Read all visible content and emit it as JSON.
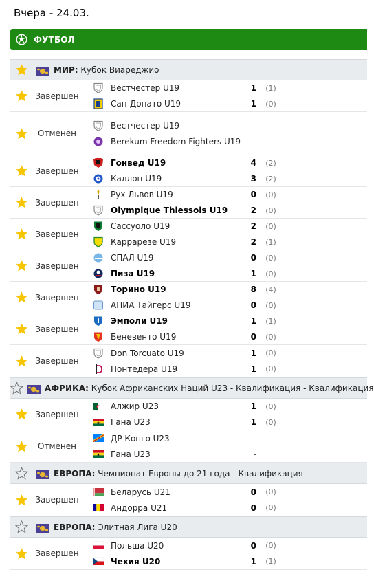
{
  "header": {
    "date": "Вчера - 24.03."
  },
  "sport": {
    "label": "ФУТБОЛ"
  },
  "colors": {
    "accent": "#1f8a13",
    "star": "#f7c600"
  },
  "leagues": [
    {
      "country": "МИР:",
      "name": "Кубок Виареджио",
      "starred": true,
      "matches": [
        {
          "status": "Завершен",
          "h": 46,
          "teams": [
            {
              "name": "Вестчестер U19",
              "score": "1",
              "ht": "(1)",
              "win": false,
              "logo": "shield"
            },
            {
              "name": "Сан-Донато U19",
              "score": "1",
              "ht": "(0)",
              "win": false,
              "logo": "yellowblue"
            }
          ]
        },
        {
          "status": "Отменен",
          "h": 63,
          "teams": [
            {
              "name": "Вестчестер U19",
              "score": "-",
              "ht": "",
              "win": false,
              "logo": "shield"
            },
            {
              "name": "Berekum Freedom Fighters U19",
              "score": "-",
              "ht": "",
              "win": false,
              "logo": "purple"
            }
          ]
        },
        {
          "status": "Завершен",
          "h": 46,
          "teams": [
            {
              "name": "Гонвед U19",
              "score": "4",
              "ht": "(2)",
              "win": true,
              "logo": "redblack"
            },
            {
              "name": "Каллон U19",
              "score": "3",
              "ht": "(2)",
              "win": false,
              "logo": "blue"
            }
          ]
        },
        {
          "status": "Завершен",
          "h": 46,
          "teams": [
            {
              "name": "Рух Львов U19",
              "score": "0",
              "ht": "(0)",
              "win": false,
              "logo": "gold"
            },
            {
              "name": "Olympique Thiessois U19",
              "score": "2",
              "ht": "(0)",
              "win": true,
              "logo": "shield"
            }
          ]
        },
        {
          "status": "Завершен",
          "h": 46,
          "teams": [
            {
              "name": "Сассуоло U19",
              "score": "2",
              "ht": "(0)",
              "win": false,
              "logo": "greenblack"
            },
            {
              "name": "Каррарезе U19",
              "score": "2",
              "ht": "(1)",
              "win": false,
              "logo": "yellowgreen"
            }
          ]
        },
        {
          "status": "Завершен",
          "h": 46,
          "teams": [
            {
              "name": "СПАЛ U19",
              "score": "0",
              "ht": "(0)",
              "win": false,
              "logo": "lightblue"
            },
            {
              "name": "Пиза U19",
              "score": "1",
              "ht": "(0)",
              "win": true,
              "logo": "darkblue"
            }
          ]
        },
        {
          "status": "Завершен",
          "h": 46,
          "teams": [
            {
              "name": "Торино U19",
              "score": "8",
              "ht": "(4)",
              "win": true,
              "logo": "maroon"
            },
            {
              "name": "АПИА Тайгерс U19",
              "score": "0",
              "ht": "(0)",
              "win": false,
              "logo": "paleblue"
            }
          ]
        },
        {
          "status": "Завершен",
          "h": 46,
          "teams": [
            {
              "name": "Эмполи U19",
              "score": "1",
              "ht": "(1)",
              "win": true,
              "logo": "azure"
            },
            {
              "name": "Беневенто U19",
              "score": "0",
              "ht": "(0)",
              "win": false,
              "logo": "orangered"
            }
          ]
        },
        {
          "status": "Завершен",
          "h": 47,
          "teams": [
            {
              "name": "Don Torcuato U19",
              "score": "1",
              "ht": "(0)",
              "win": false,
              "logo": "shield"
            },
            {
              "name": "Понтедера U19",
              "score": "1",
              "ht": "(0)",
              "win": false,
              "logo": "pinkd"
            }
          ]
        }
      ]
    },
    {
      "country": "АФРИКА:",
      "name": "Кубок Африканских Наций U23 - Квалификация - Квалификация",
      "starred": false,
      "matches": [
        {
          "status": "Завершен",
          "h": 46,
          "teams": [
            {
              "name": "Алжир U23",
              "score": "1",
              "ht": "(0)",
              "win": false,
              "logo": "flag-dz"
            },
            {
              "name": "Гана U23",
              "score": "1",
              "ht": "(0)",
              "win": false,
              "logo": "flag-gh"
            }
          ]
        },
        {
          "status": "Отменен",
          "h": 47,
          "teams": [
            {
              "name": "ДР Конго U23",
              "score": "-",
              "ht": "",
              "win": false,
              "logo": "flag-cd"
            },
            {
              "name": "Гана U23",
              "score": "-",
              "ht": "",
              "win": false,
              "logo": "flag-gh"
            }
          ]
        }
      ]
    },
    {
      "country": "ЕВРОПА:",
      "name": "Чемпионат Европы до 21 года - Квалификация",
      "starred": false,
      "matches": [
        {
          "status": "Завершен",
          "h": 47,
          "teams": [
            {
              "name": "Беларусь U21",
              "score": "0",
              "ht": "(0)",
              "win": false,
              "logo": "flag-by"
            },
            {
              "name": "Андорра U21",
              "score": "0",
              "ht": "(0)",
              "win": false,
              "logo": "flag-ad"
            }
          ]
        }
      ]
    },
    {
      "country": "ЕВРОПА:",
      "name": "Элитная Лига U20",
      "starred": false,
      "matches": [
        {
          "status": "Завершен",
          "h": 47,
          "teams": [
            {
              "name": "Польша U20",
              "score": "0",
              "ht": "(0)",
              "win": false,
              "logo": "flag-pl"
            },
            {
              "name": "Чехия U20",
              "score": "1",
              "ht": "(1)",
              "win": true,
              "logo": "flag-cz"
            }
          ]
        }
      ]
    }
  ]
}
